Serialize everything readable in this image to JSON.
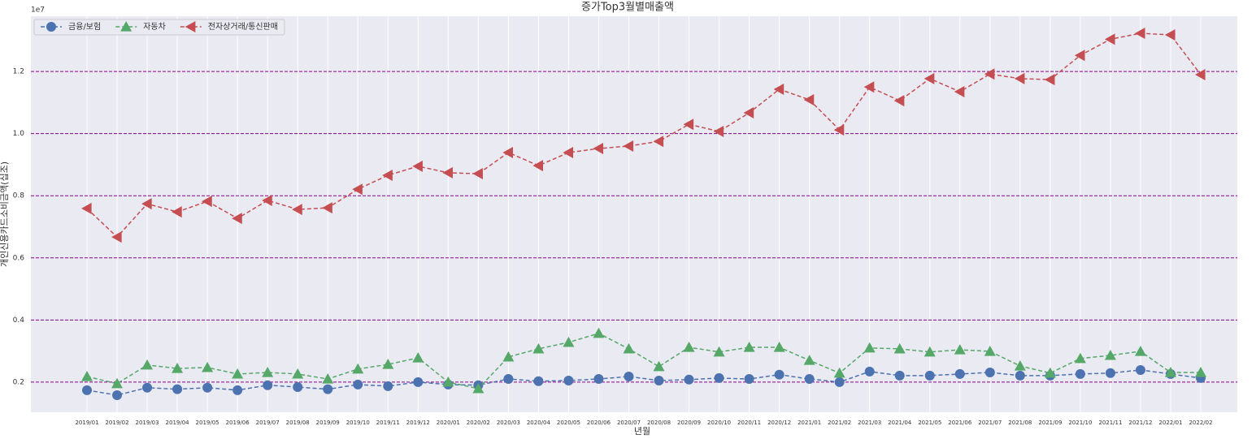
{
  "chart_data": {
    "type": "line",
    "title": "증가Top3월별매출액",
    "xlabel": "년월",
    "ylabel": "개인신용카드소비금액(십조)",
    "y_offset_label": "1e7",
    "categories": [
      "2019/01",
      "2019/02",
      "2019/03",
      "2019/04",
      "2019/05",
      "2019/06",
      "2019/07",
      "2019/08",
      "2019/09",
      "2019/10",
      "2019/11",
      "2019/12",
      "2020/01",
      "2020/02",
      "2020/03",
      "2020/04",
      "2020/05",
      "2020/06",
      "2020/07",
      "2020/08",
      "2020/09",
      "2020/10",
      "2020/11",
      "2020/12",
      "2021/01",
      "2021/02",
      "2021/03",
      "2021/04",
      "2021/05",
      "2021/06",
      "2021/07",
      "2021/08",
      "2021/09",
      "2021/10",
      "2021/11",
      "2021/12",
      "2022/01",
      "2022/02"
    ],
    "series": [
      {
        "name": "금융/보험",
        "color": "#4c72b0",
        "marker": "circle",
        "values": [
          1740000,
          1580000,
          1820000,
          1770000,
          1820000,
          1740000,
          1900000,
          1840000,
          1770000,
          1920000,
          1870000,
          2000000,
          1920000,
          1900000,
          2100000,
          2030000,
          2050000,
          2100000,
          2180000,
          2050000,
          2080000,
          2130000,
          2100000,
          2240000,
          2100000,
          2000000,
          2340000,
          2210000,
          2210000,
          2260000,
          2310000,
          2210000,
          2210000,
          2260000,
          2290000,
          2390000,
          2260000,
          2130000
        ]
      },
      {
        "name": "자동차",
        "color": "#55a868",
        "marker": "triangle-up",
        "values": [
          2180000,
          1950000,
          2550000,
          2440000,
          2470000,
          2260000,
          2310000,
          2260000,
          2100000,
          2420000,
          2570000,
          2780000,
          2000000,
          1790000,
          2810000,
          3070000,
          3280000,
          3570000,
          3070000,
          2500000,
          3120000,
          2970000,
          3120000,
          3120000,
          2700000,
          2290000,
          3100000,
          3070000,
          2970000,
          3040000,
          2990000,
          2520000,
          2290000,
          2760000,
          2860000,
          2990000,
          2310000,
          2310000
        ]
      },
      {
        "name": "전자상거래/통신판매",
        "color": "#c44e52",
        "marker": "triangle-left",
        "values": [
          7590000,
          6670000,
          7740000,
          7480000,
          7820000,
          7270000,
          7850000,
          7560000,
          7610000,
          8210000,
          8660000,
          8950000,
          8740000,
          8710000,
          9390000,
          8970000,
          9390000,
          9520000,
          9600000,
          9750000,
          10300000,
          10070000,
          10670000,
          11430000,
          11090000,
          10120000,
          11500000,
          11060000,
          11770000,
          11350000,
          11920000,
          11770000,
          11740000,
          12520000,
          13040000,
          13230000,
          13180000,
          11900000
        ]
      }
    ],
    "ylim": [
      1030000,
      13780000
    ],
    "yticks": [
      {
        "value": 2000000,
        "label": "0.2"
      },
      {
        "value": 4000000,
        "label": "0.4"
      },
      {
        "value": 6000000,
        "label": "0.6"
      },
      {
        "value": 8000000,
        "label": "0.8"
      },
      {
        "value": 10000000,
        "label": "1.0"
      },
      {
        "value": 12000000,
        "label": "1.2"
      }
    ],
    "grid": {
      "x": true,
      "y": true
    },
    "ygrid_color": "#8b008b",
    "legend_loc": "upper left"
  }
}
